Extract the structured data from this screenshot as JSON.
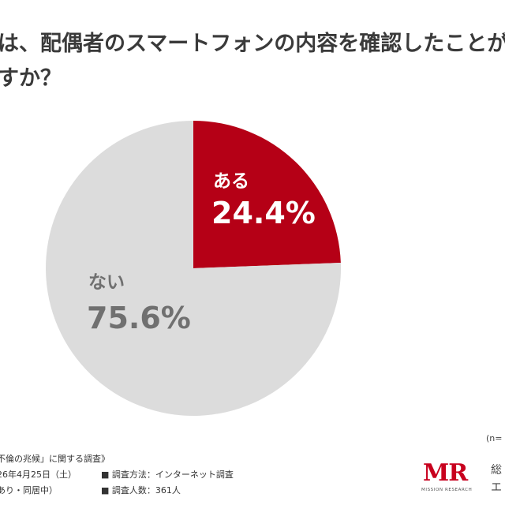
{
  "title_lines": [
    "たは、配偶者のスマートフォンの内容を確認したことが",
    "ますか？"
  ],
  "chart_data": {
    "type": "pie",
    "title": "",
    "slices": [
      {
        "label": "ある",
        "value": 24.4,
        "value_label": "24.4%",
        "color": "#b50016"
      },
      {
        "label": "ない",
        "value": 75.6,
        "value_label": "75.6%",
        "color": "#dcdcdc"
      }
    ],
    "start": "12 o'clock, clockwise"
  },
  "footer": {
    "survey_title": "不倫の兆候」に関する調査》",
    "date": "26年4月25日（土）",
    "condition": "あり・同居中）",
    "method": "■ 調査方法：インターネット調査",
    "respondents": "■ 調査人数：361人",
    "n_note": "(n=",
    "logo_mark": "MR",
    "logo_sub": "MISSION RESEARCH",
    "corp_line1": "総",
    "corp_line2": "エ"
  }
}
